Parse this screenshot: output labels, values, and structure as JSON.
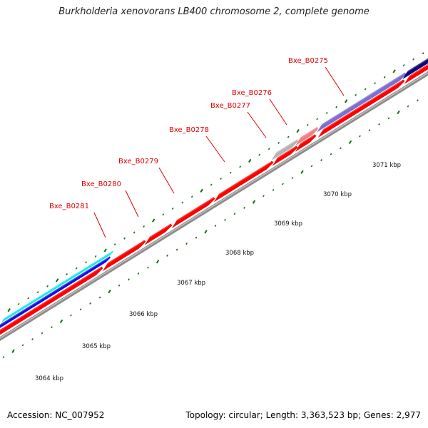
{
  "title": "Burkholderia xenovorans LB400 chromosome 2, complete genome",
  "footer": {
    "accession": "Accession: NC_007952",
    "topology": "Topology: circular; Length: 3,363,523 bp; Genes: 2,977"
  },
  "scale_labels": [
    "3064 kbp",
    "3065 kbp",
    "3066 kbp",
    "3067 kbp",
    "3068 kbp",
    "3069 kbp",
    "3070 kbp",
    "3071 kbp"
  ],
  "gene_labels": [
    "Bxe_B0281",
    "Bxe_B0280",
    "Bxe_B0279",
    "Bxe_B0278",
    "Bxe_B0277",
    "Bxe_B0276",
    "Bxe_B0275"
  ],
  "colors": {
    "cds": "#ff0000",
    "cds_light": "#f08080",
    "cds_grey": "#b4b4b4",
    "purple": "#7a70d0",
    "navy": "#0c0c78",
    "blue": "#1010e0",
    "cyan": "#00e8f0",
    "backbone": "#8c8c8c",
    "tick": "#0c6e0c",
    "label_line": "#e00000"
  }
}
